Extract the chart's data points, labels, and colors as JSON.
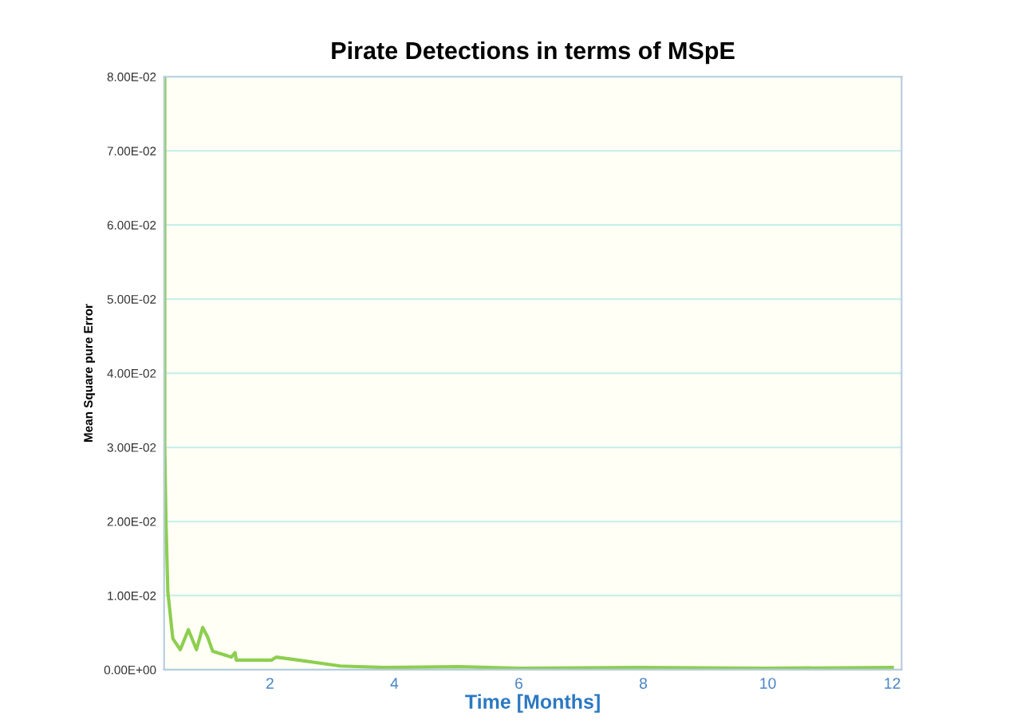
{
  "chart_data": {
    "type": "line",
    "title": "Pirate Detections in terms of MSpE",
    "xlabel": "Time [Months]",
    "ylabel": "Mean Square pure Error",
    "x": [
      0.31,
      0.31,
      0.33,
      0.36,
      0.44,
      0.56,
      0.69,
      0.82,
      0.92,
      1.0,
      1.08,
      1.38,
      1.44,
      1.46,
      1.77,
      2.03,
      2.1,
      2.46,
      2.79,
      3.13,
      3.82,
      5.03,
      6.0,
      7.92,
      9.97,
      12.0
    ],
    "series": [
      {
        "color": "#8dce4f",
        "values": [
          0.08,
          0.03,
          0.02,
          0.0105,
          0.0042,
          0.0027,
          0.0054,
          0.0027,
          0.0057,
          0.0044,
          0.0025,
          0.0017,
          0.0023,
          0.0013,
          0.0013,
          0.0013,
          0.0017,
          0.0013,
          0.0009,
          0.0005,
          0.0003,
          0.0004,
          0.0002,
          0.0003,
          0.0002,
          0.0003
        ]
      }
    ],
    "xlim": [
      0.3,
      12.15
    ],
    "ylim": [
      0,
      0.08
    ],
    "xticks": [
      2,
      4,
      6,
      8,
      10,
      12
    ],
    "yticks": [
      {
        "value": 0,
        "label": "0.00E+00"
      },
      {
        "value": 0.01,
        "label": "1.00E-02"
      },
      {
        "value": 0.02,
        "label": "2.00E-02"
      },
      {
        "value": 0.03,
        "label": "3.00E-02"
      },
      {
        "value": 0.04,
        "label": "4.00E-02"
      },
      {
        "value": 0.05,
        "label": "5.00E-02"
      },
      {
        "value": 0.06,
        "label": "6.00E-02"
      },
      {
        "value": 0.07,
        "label": "7.00E-02"
      },
      {
        "value": 0.08,
        "label": "8.00E-02"
      }
    ],
    "grid": "y",
    "legend": false,
    "marker": "none",
    "line_style": "solid"
  }
}
